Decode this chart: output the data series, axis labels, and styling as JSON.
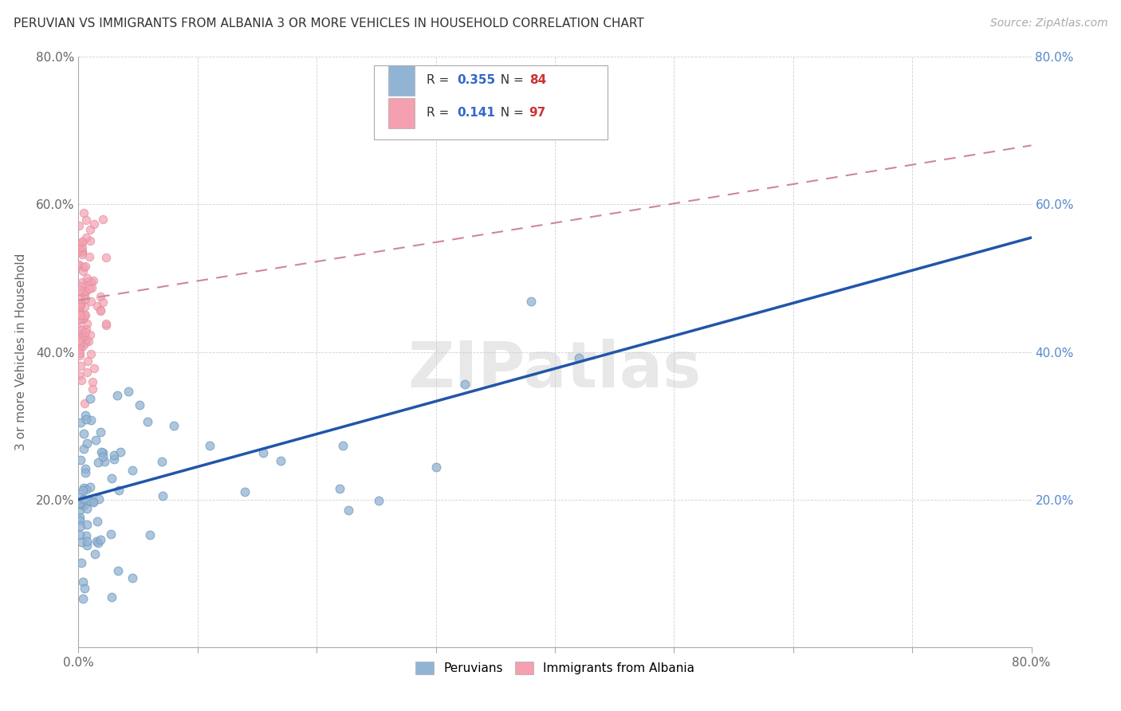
{
  "title": "PERUVIAN VS IMMIGRANTS FROM ALBANIA 3 OR MORE VEHICLES IN HOUSEHOLD CORRELATION CHART",
  "source": "Source: ZipAtlas.com",
  "ylabel": "3 or more Vehicles in Household",
  "xlim": [
    0.0,
    0.8
  ],
  "ylim": [
    0.0,
    0.8
  ],
  "xticks": [
    0.0,
    0.1,
    0.2,
    0.3,
    0.4,
    0.5,
    0.6,
    0.7,
    0.8
  ],
  "yticks": [
    0.0,
    0.2,
    0.4,
    0.6,
    0.8
  ],
  "xtick_labels": [
    "0.0%",
    "",
    "",
    "",
    "",
    "",
    "",
    "",
    "80.0%"
  ],
  "ytick_labels": [
    "",
    "20.0%",
    "40.0%",
    "60.0%",
    "80.0%"
  ],
  "right_yticks": [
    0.2,
    0.4,
    0.6,
    0.8
  ],
  "right_ytick_labels": [
    "20.0%",
    "40.0%",
    "60.0%",
    "80.0%"
  ],
  "peruvian_color": "#92b4d4",
  "albania_color": "#f4a0b0",
  "peruvian_R": 0.355,
  "peruvian_N": 84,
  "albania_R": 0.141,
  "albania_N": 97,
  "legend_label_1": "Peruvians",
  "legend_label_2": "Immigrants from Albania",
  "watermark": "ZIPatlas",
  "background_color": "#ffffff",
  "grid_color": "#cccccc",
  "blue_line_color": "#2255aa",
  "pink_line_color": "#cc8899",
  "title_fontsize": 11,
  "source_fontsize": 10,
  "blue_line_x0": 0.0,
  "blue_line_y0": 0.2,
  "blue_line_x1": 0.8,
  "blue_line_y1": 0.555,
  "pink_line_x0": 0.0,
  "pink_line_y0": 0.47,
  "pink_line_x1": 0.8,
  "pink_line_y1": 0.68
}
